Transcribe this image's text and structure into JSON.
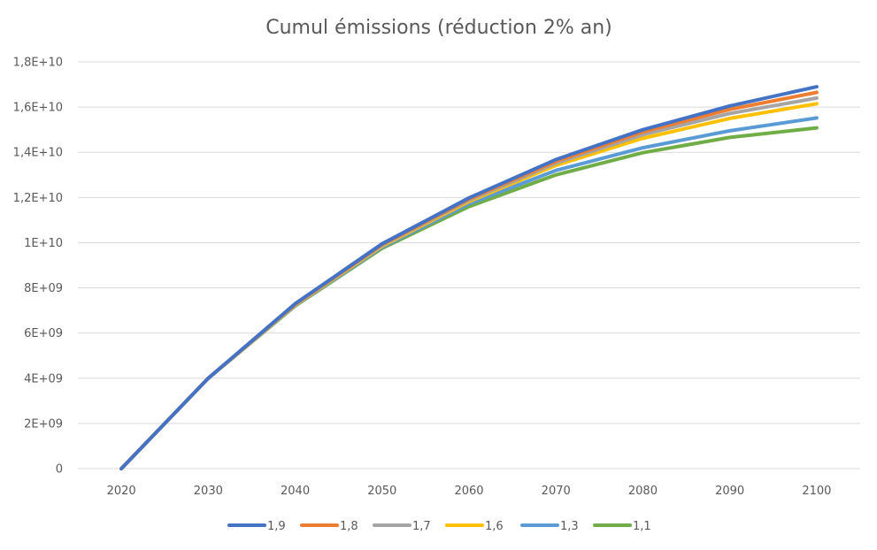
{
  "chart_data": {
    "type": "line",
    "title": "Cumul émissions (réduction 2% an)",
    "xlabel": "",
    "ylabel": "",
    "categories": [
      "2020",
      "2030",
      "2040",
      "2050",
      "2060",
      "2070",
      "2080",
      "2090",
      "2100"
    ],
    "ylim": [
      0,
      18000000000
    ],
    "y_ticks": [
      {
        "value": 0,
        "label": "0"
      },
      {
        "value": 2000000000,
        "label": "2E+09"
      },
      {
        "value": 4000000000,
        "label": "4E+09"
      },
      {
        "value": 6000000000,
        "label": "6E+09"
      },
      {
        "value": 8000000000,
        "label": "8E+09"
      },
      {
        "value": 10000000000,
        "label": "1E+10"
      },
      {
        "value": 12000000000,
        "label": "1,2E+10"
      },
      {
        "value": 14000000000,
        "label": "1,4E+10"
      },
      {
        "value": 16000000000,
        "label": "1,6E+10"
      },
      {
        "value": 18000000000,
        "label": "1,8E+10"
      }
    ],
    "grid": true,
    "legend_position": "bottom",
    "series": [
      {
        "name": "1,9",
        "color": "#4472C4",
        "values": [
          0,
          4000000000,
          7300000000,
          9950000000,
          11980000000,
          13680000000,
          15000000000,
          16050000000,
          16900000000
        ]
      },
      {
        "name": "1,8",
        "color": "#ED7D31",
        "values": [
          0,
          4000000000,
          7280000000,
          9920000000,
          11930000000,
          13600000000,
          14900000000,
          15900000000,
          16650000000
        ]
      },
      {
        "name": "1,7",
        "color": "#A5A5A5",
        "values": [
          0,
          4000000000,
          7260000000,
          9890000000,
          11880000000,
          13520000000,
          14780000000,
          15720000000,
          16400000000
        ]
      },
      {
        "name": "1,6",
        "color": "#FFC000",
        "values": [
          0,
          4000000000,
          7240000000,
          9850000000,
          11820000000,
          13420000000,
          14620000000,
          15500000000,
          16150000000
        ]
      },
      {
        "name": "1,3",
        "color": "#5B9BD5",
        "values": [
          0,
          4000000000,
          7220000000,
          9800000000,
          11720000000,
          13200000000,
          14200000000,
          14950000000,
          15520000000
        ]
      },
      {
        "name": "1,1",
        "color": "#70AD47",
        "values": [
          0,
          4000000000,
          7200000000,
          9750000000,
          11600000000,
          13000000000,
          13980000000,
          14660000000,
          15080000000
        ]
      }
    ]
  }
}
